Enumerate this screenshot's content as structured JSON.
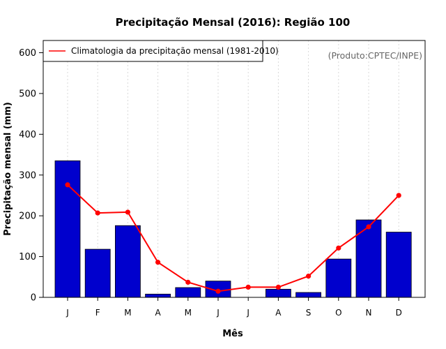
{
  "chart_data": {
    "type": "bar",
    "title": "Precipitação Mensal (2016): Região 100",
    "xlabel": "Mês",
    "ylabel": "Precipitação mensal (mm)",
    "ylim": [
      0,
      630
    ],
    "yticks": [
      0,
      100,
      200,
      300,
      400,
      500,
      600
    ],
    "categories": [
      "J",
      "F",
      "M",
      "A",
      "M",
      "J",
      "J",
      "A",
      "S",
      "O",
      "N",
      "D"
    ],
    "series": [
      {
        "name": "Precipitação mensal (2016)",
        "type": "bar",
        "color": "#0000CD",
        "values": [
          335,
          118,
          176,
          8,
          24,
          40,
          0,
          20,
          12,
          94,
          190,
          160
        ]
      },
      {
        "name": "Climatologia da precipitação mensal (1981-2010)",
        "type": "line",
        "color": "#FF0000",
        "values": [
          276,
          207,
          209,
          86,
          37,
          15,
          25,
          25,
          52,
          121,
          173,
          250
        ]
      }
    ],
    "legend": {
      "position": "top-left",
      "label": "Climatologia da precipitação mensal (1981-2010)"
    },
    "annotation": "(Produto:CPTEC/INPE)",
    "grid": "vertical dotted"
  }
}
